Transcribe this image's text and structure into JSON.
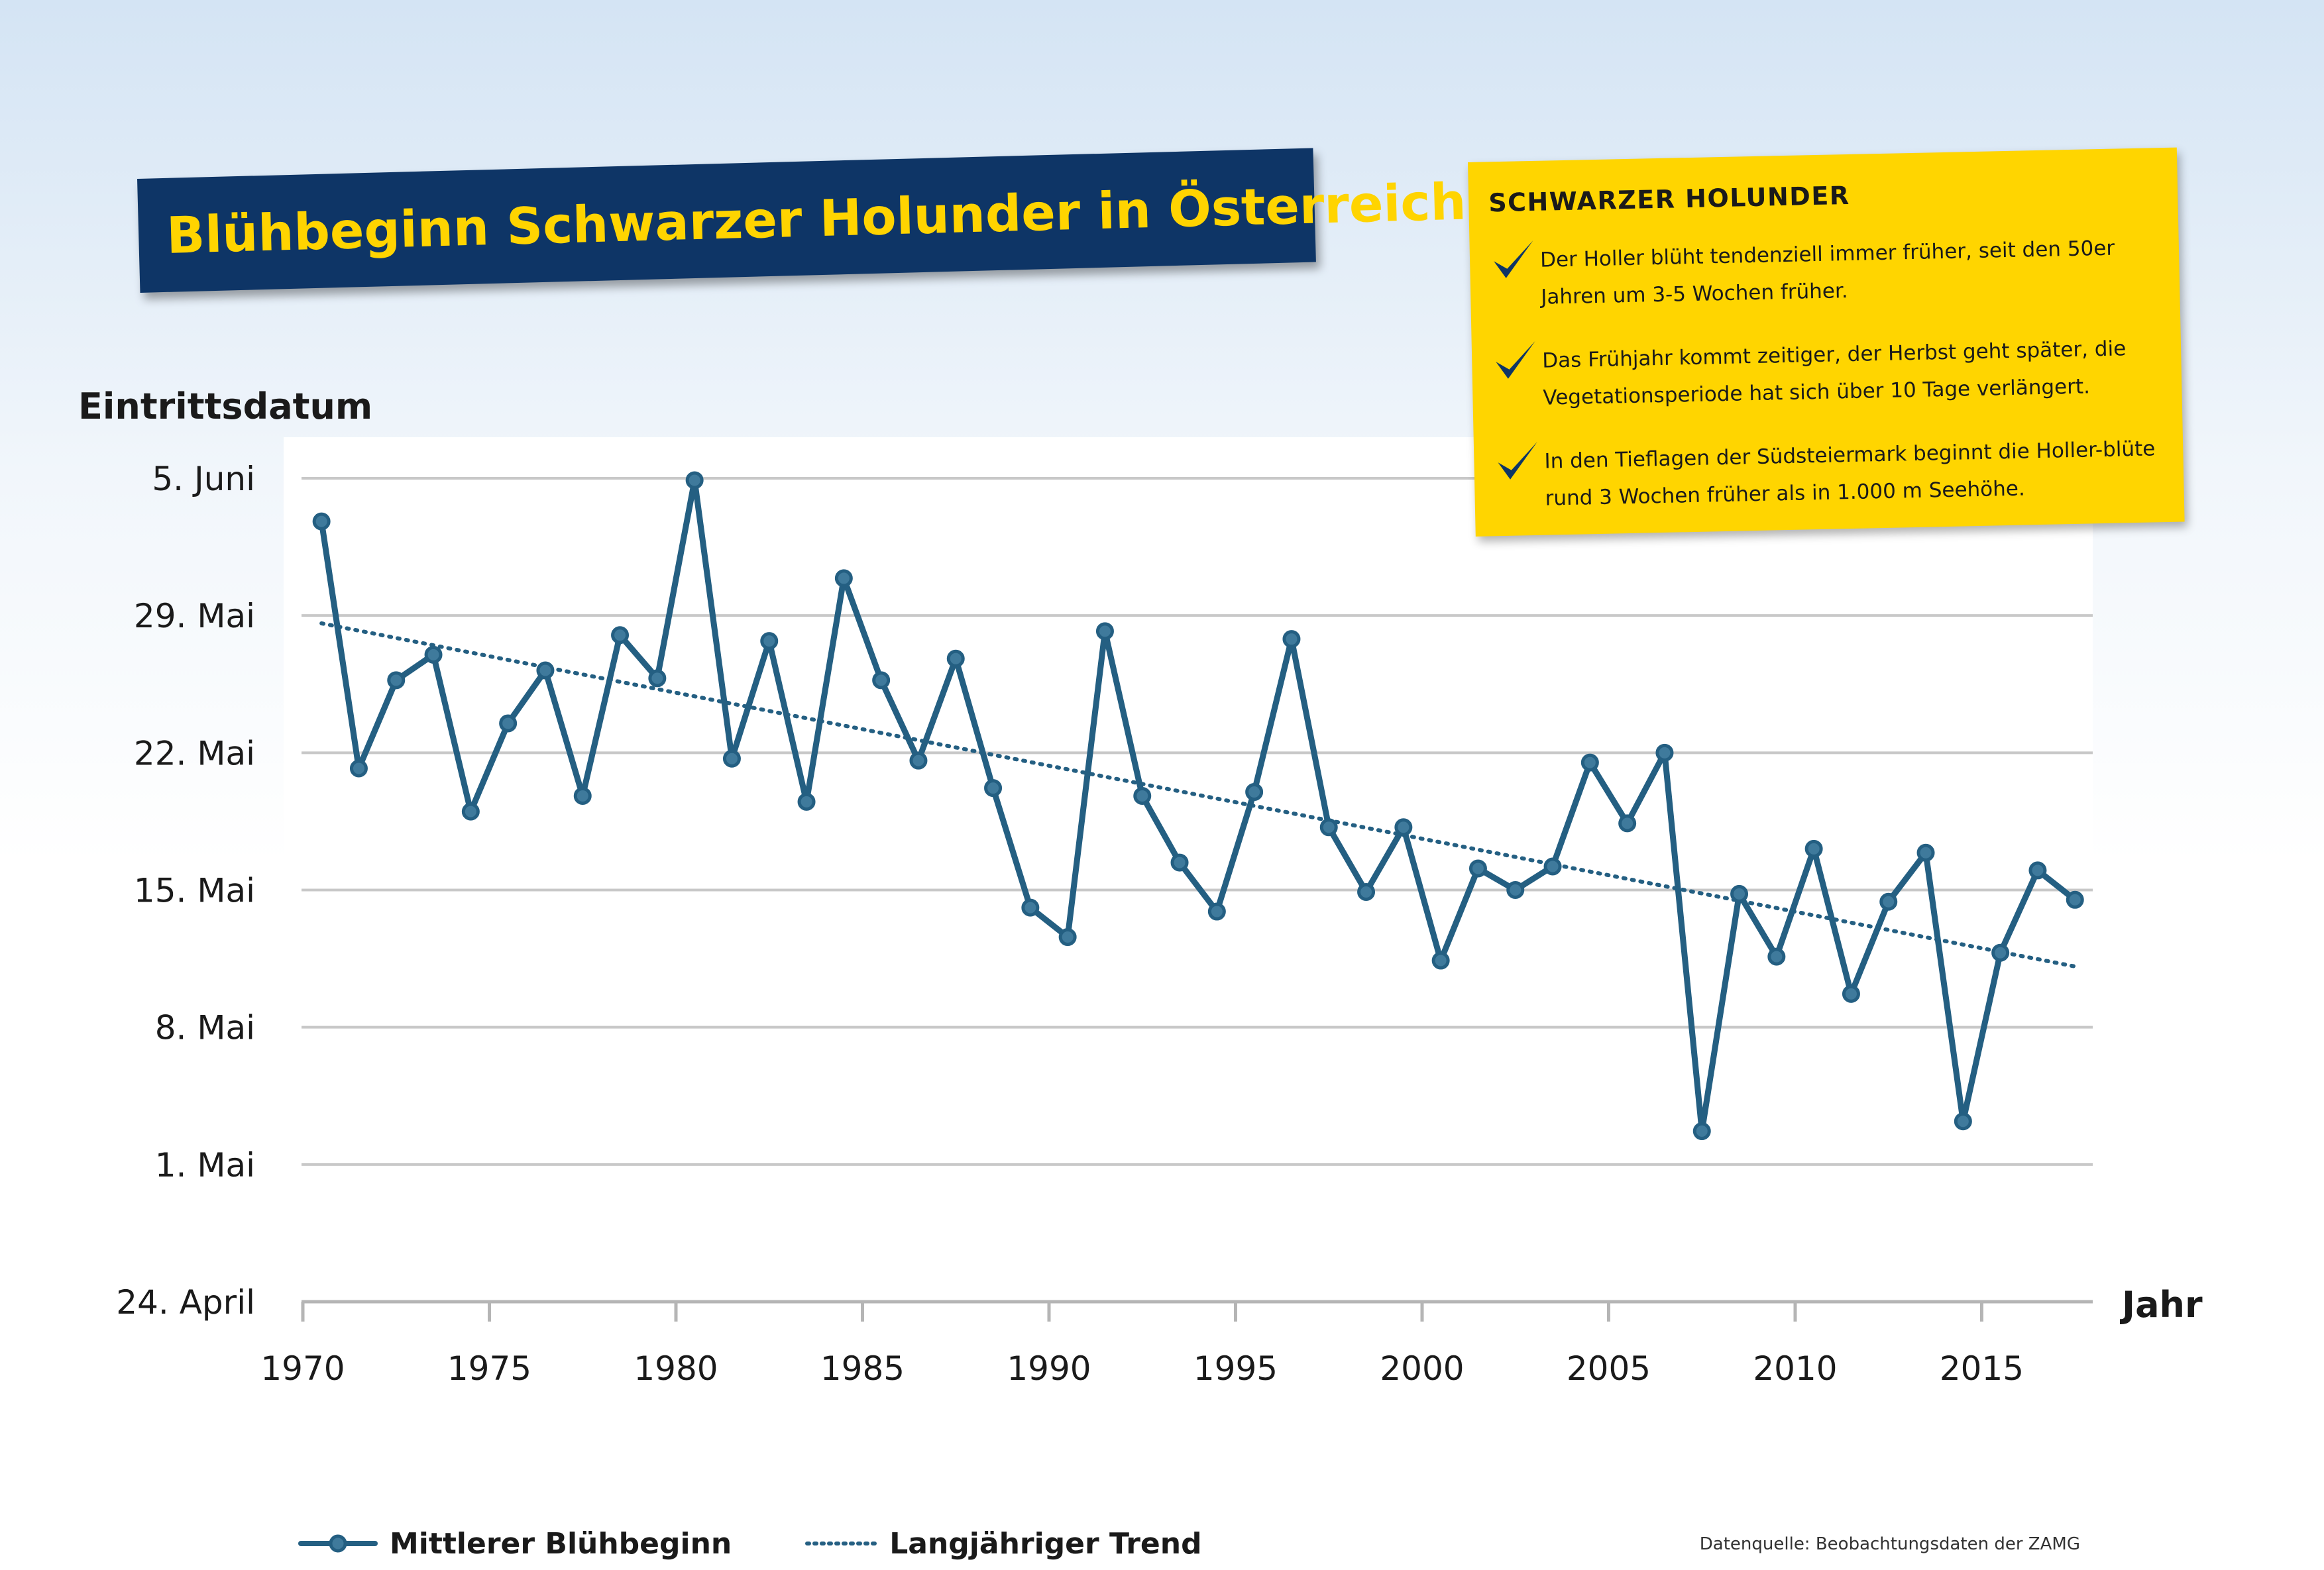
{
  "title": "Blühbeginn Schwarzer Holunder in Österreich",
  "info": {
    "heading": "SCHWARZER HOLUNDER",
    "items": [
      "Der Holler blüht tendenziell immer früher, seit den 50er Jahren um 3-5 Wochen früher.",
      "Das Frühjahr kommt zeitiger, der Herbst geht später, die Vegetationsperiode hat sich über 10 Tage verlängert.",
      "In den Tieflagen der Südsteiermark beginnt die Holler-blüte rund 3 Wochen früher als in 1.000 m Seehöhe."
    ],
    "icon": "checkmark-icon"
  },
  "source": "Datenquelle: Beobachtungsdaten der ZAMG",
  "colors": {
    "series": "#245f82",
    "banner": "#0e3566",
    "banner_text": "#ffd400",
    "info_box": "#ffd500"
  },
  "chart_data": {
    "type": "line",
    "title": "Blühbeginn Schwarzer Holunder in Österreich",
    "xlabel": "Jahr",
    "ylabel": "Eintrittsdatum",
    "x_ticks": [
      "1970",
      "1975",
      "1980",
      "1985",
      "1990",
      "1995",
      "2000",
      "2005",
      "2010",
      "2015"
    ],
    "y_ticks": [
      "24. April",
      "1. Mai",
      "8. Mai",
      "15. Mai",
      "22. Mai",
      "29. Mai",
      "5. Juni"
    ],
    "y_unit": "Tag des Jahres (24. April = 114, 5. Juni = 156)",
    "ylim": [
      114,
      156
    ],
    "xlim": [
      1970,
      2018
    ],
    "grid": true,
    "legend_position": "bottom",
    "x": [
      1970,
      1971,
      1972,
      1973,
      1974,
      1975,
      1976,
      1977,
      1978,
      1979,
      1980,
      1981,
      1982,
      1983,
      1984,
      1985,
      1986,
      1987,
      1988,
      1989,
      1990,
      1991,
      1992,
      1993,
      1994,
      1995,
      1996,
      1997,
      1998,
      1999,
      2000,
      2001,
      2002,
      2003,
      2004,
      2005,
      2006,
      2007,
      2008,
      2009,
      2010,
      2011,
      2012,
      2013,
      2014,
      2015,
      2016,
      2017
    ],
    "series": [
      {
        "name": "Mittlerer Blühbeginn",
        "style": "solid-markers",
        "values": [
          153.8,
          141.2,
          145.7,
          147.0,
          139.0,
          143.5,
          146.2,
          139.8,
          148.0,
          145.8,
          155.9,
          141.7,
          147.7,
          139.5,
          150.9,
          145.7,
          141.6,
          146.8,
          140.2,
          134.1,
          132.6,
          148.2,
          139.8,
          136.4,
          133.9,
          140.0,
          147.8,
          138.2,
          134.9,
          138.2,
          131.4,
          136.1,
          135.0,
          136.2,
          141.5,
          138.4,
          142.0,
          122.7,
          134.8,
          131.6,
          137.1,
          129.7,
          134.4,
          136.9,
          123.2,
          131.8,
          136.0,
          134.5
        ]
      },
      {
        "name": "Langjähriger Trend",
        "style": "dotted",
        "x": [
          1970,
          2017
        ],
        "values": [
          148.6,
          131.1
        ]
      }
    ]
  },
  "legend": {
    "series_label": "Mittlerer Blühbeginn",
    "trend_label": "Langjähriger Trend"
  }
}
